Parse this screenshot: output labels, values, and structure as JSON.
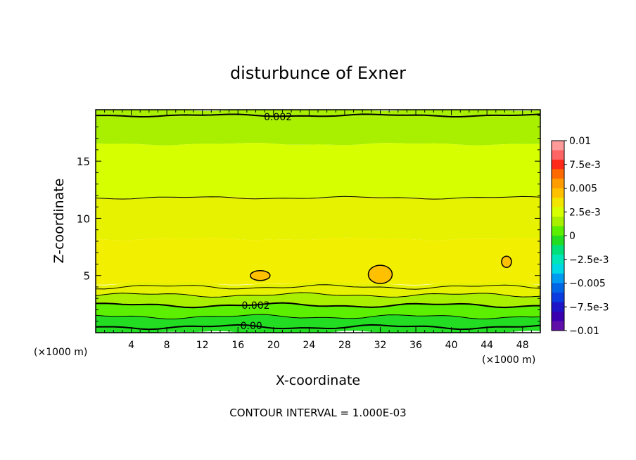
{
  "chart_data": {
    "type": "contour",
    "title": "disturbunce of Exner",
    "xlabel": "X-coordinate",
    "ylabel": "Z-coordinate",
    "x_unit_left": "(×1000 m)",
    "x_unit_right": "(×1000 m)",
    "xlim": [
      0,
      50
    ],
    "ylim": [
      0,
      19.5
    ],
    "x_ticks": [
      4,
      8,
      12,
      16,
      20,
      24,
      28,
      32,
      36,
      40,
      44,
      48
    ],
    "y_ticks": [
      5,
      10,
      15
    ],
    "contour_interval_text": "CONTOUR INTERVAL = 1.000E-03",
    "contour_labels": [
      {
        "text": "0.002",
        "x": 20.5,
        "z": 18.9
      },
      {
        "text": "0.002",
        "x": 18.0,
        "z": 2.4
      },
      {
        "text": "0.00",
        "x": 17.5,
        "z": 0.6
      }
    ],
    "colorbar": {
      "labels": [
        "0.01",
        "7.5e-3",
        "0.005",
        "2.5e-3",
        "0",
        "−2.5e-3",
        "−0.005",
        "−7.5e-3",
        "−0.01"
      ],
      "colors": [
        "#ff9a9a",
        "#ff6464",
        "#ff2a1a",
        "#ff6a00",
        "#ff9c00",
        "#ffc000",
        "#f2e600",
        "#d6ff00",
        "#a8f000",
        "#5cf000",
        "#22dd22",
        "#00e07a",
        "#00e6b8",
        "#00d8e6",
        "#009cf2",
        "#0066e6",
        "#0a3ce0",
        "#1e14c8",
        "#3a00b0",
        "#6010a8"
      ]
    },
    "field_bands": [
      {
        "z_top": 19.5,
        "z_bottom": 19.0,
        "color": "#a8f000"
      },
      {
        "z_top": 19.0,
        "z_bottom": 16.5,
        "color": "#a8f000"
      },
      {
        "z_top": 16.5,
        "z_bottom": 11.8,
        "color": "#d6ff00"
      },
      {
        "z_top": 11.8,
        "z_bottom": 8.2,
        "color": "#e6f200"
      },
      {
        "z_top": 8.2,
        "z_bottom": 4.3,
        "color": "#f2f000"
      },
      {
        "z_top": 4.3,
        "z_bottom": 3.3,
        "color": "#e6f200"
      },
      {
        "z_top": 3.3,
        "z_bottom": 2.4,
        "color": "#a8f000"
      },
      {
        "z_top": 2.4,
        "z_bottom": 1.4,
        "color": "#5cf000"
      },
      {
        "z_top": 1.4,
        "z_bottom": 0.5,
        "color": "#22dd22"
      },
      {
        "z_top": 0.5,
        "z_bottom": 0.0,
        "color": "#22dd22"
      }
    ],
    "highs": [
      {
        "x": 18.5,
        "z": 5.0
      },
      {
        "x": 32.0,
        "z": 5.1
      },
      {
        "x": 46.2,
        "z": 6.2
      }
    ]
  }
}
